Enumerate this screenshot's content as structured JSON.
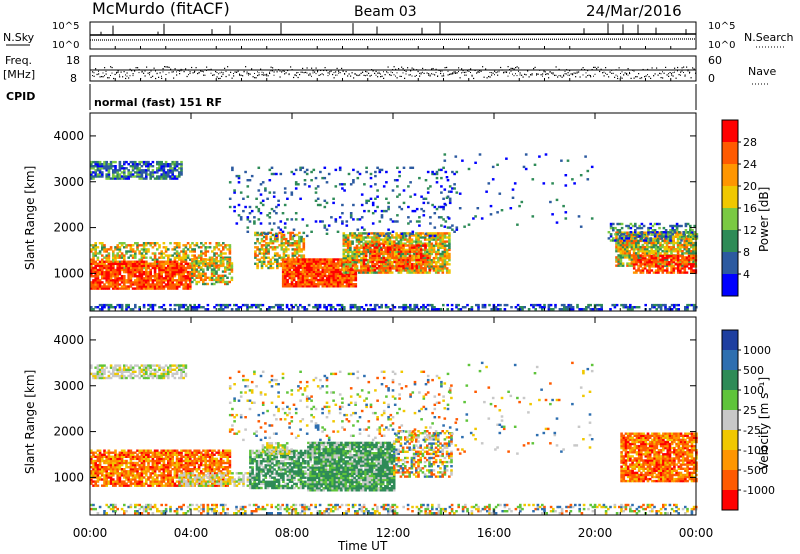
{
  "header": {
    "station": "McMurdo (fitACF)",
    "beam": "Beam 03",
    "date": "24/Mar/2016"
  },
  "strips": {
    "nsky_label": "N.Sky",
    "nsearch_label": "N.Search",
    "count_ticks_left": [
      "10^5",
      "10^0"
    ],
    "count_ticks_right": [
      "10^5",
      "10^0"
    ],
    "freq_label": "Freq.",
    "freq_unit": "[MHz]",
    "freq_ticks": [
      "18",
      "8"
    ],
    "nave_label": "Nave",
    "nave_ticks": [
      "60",
      "0"
    ],
    "cpid_label": "CPID",
    "cpid_text": "normal (fast) 151 RF"
  },
  "chart_data": [
    {
      "type": "heatmap",
      "name": "power",
      "ylabel": "Slant Range [km]",
      "xlabel": "Time UT",
      "xlim": [
        "00:00",
        "00:00"
      ],
      "ylim": [
        180,
        4500
      ],
      "y_ticks": [
        1000,
        2000,
        3000,
        4000
      ],
      "x_ticks": [
        "00:00",
        "04:00",
        "08:00",
        "12:00",
        "16:00",
        "20:00",
        "00:00"
      ],
      "colorbar_label": "Power [dB]",
      "colorbar_ticks": [
        "28",
        "24",
        "20",
        "16",
        "12",
        "8",
        "4"
      ],
      "colorbar_colors": [
        "#ff0000",
        "#ff5a00",
        "#ff9600",
        "#f0c800",
        "#7ac943",
        "#2e8b57",
        "#2c5aa0",
        "#0000ff"
      ]
    },
    {
      "type": "heatmap",
      "name": "velocity",
      "ylabel": "Slant Range [km]",
      "xlabel": "Time UT",
      "xlim": [
        "00:00",
        "00:00"
      ],
      "ylim": [
        180,
        4500
      ],
      "y_ticks": [
        1000,
        2000,
        3000,
        4000
      ],
      "x_ticks": [
        "00:00",
        "04:00",
        "08:00",
        "12:00",
        "16:00",
        "20:00",
        "00:00"
      ],
      "colorbar_label": "Velocity [m s⁻¹]",
      "colorbar_ticks": [
        "1000",
        "500",
        "100",
        "25",
        "-25",
        "-100",
        "-500",
        "-1000"
      ],
      "colorbar_colors": [
        "#1f3fa0",
        "#2e6fb0",
        "#2e8b57",
        "#5fc43a",
        "#c8c8c8",
        "#f0c800",
        "#ff9600",
        "#ff5a00",
        "#ff0000"
      ]
    }
  ]
}
